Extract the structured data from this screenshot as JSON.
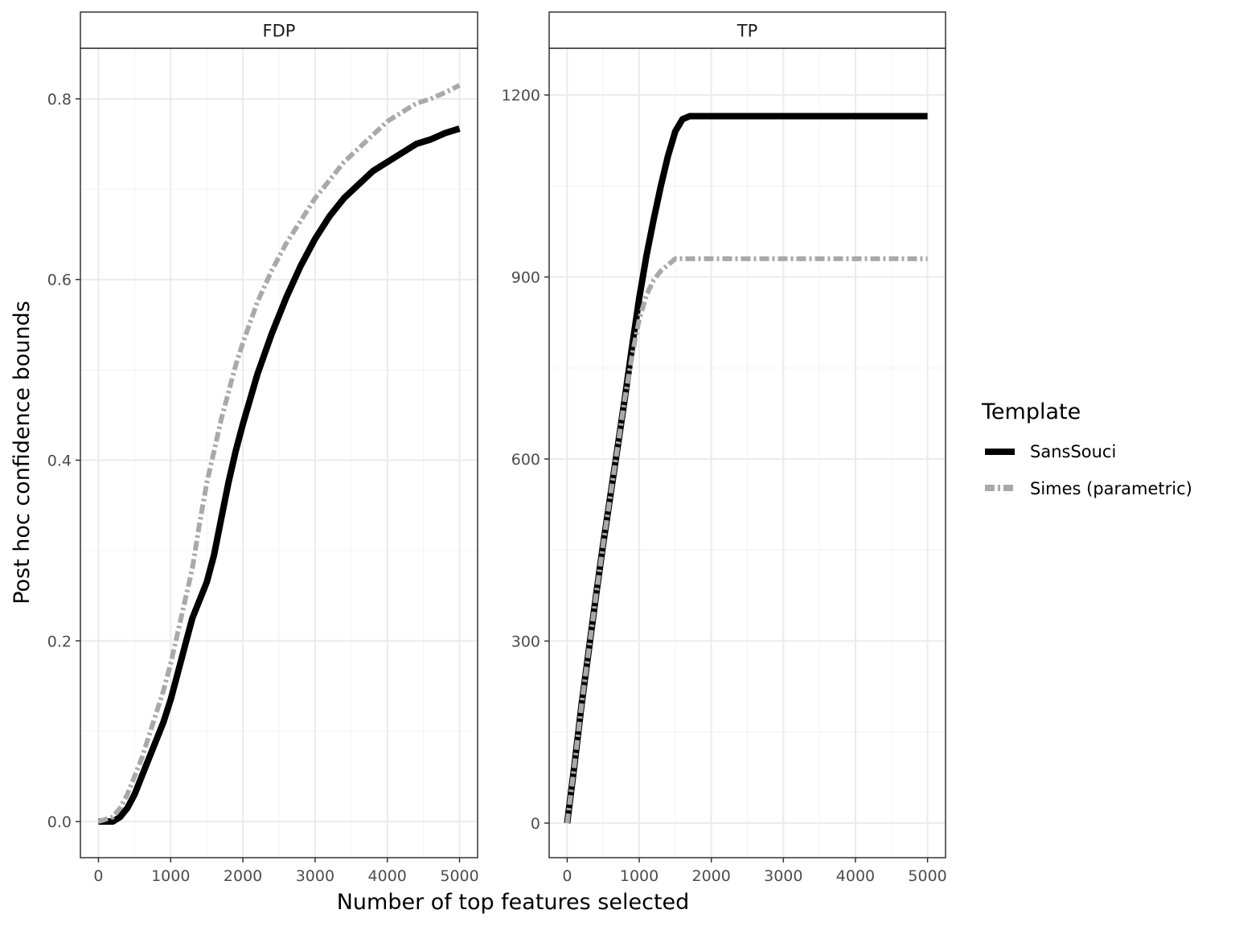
{
  "chart_data": {
    "type": "line",
    "xlabel": "Number of top features selected",
    "ylabel": "Post hoc confidence bounds",
    "legend": {
      "title": "Template",
      "placement": "right",
      "entries": [
        "SansSouci",
        "Simes (parametric)"
      ]
    },
    "series_styles": [
      {
        "name": "SansSouci",
        "color": "#000000",
        "dash": "solid"
      },
      {
        "name": "Simes (parametric)",
        "color": "#a9a9a9",
        "dash": "dashdot"
      }
    ],
    "grid": true,
    "panels": [
      {
        "strip": "FDP",
        "xlim": [
          -250,
          5250
        ],
        "ylim": [
          -0.04,
          0.856
        ],
        "x_ticks": [
          0,
          1000,
          2000,
          3000,
          4000,
          5000
        ],
        "x_tick_labels": [
          "0",
          "1000",
          "2000",
          "3000",
          "4000",
          "5000"
        ],
        "y_ticks": [
          0,
          0.2,
          0.4,
          0.6,
          0.8
        ],
        "y_tick_labels": [
          "0.0",
          "0.2",
          "0.4",
          "0.6",
          "0.8"
        ],
        "series": [
          {
            "name": "SansSouci",
            "x": [
              0,
              200,
              300,
              400,
              500,
              600,
              700,
              800,
              900,
              1000,
              1100,
              1200,
              1300,
              1400,
              1500,
              1600,
              1700,
              1800,
              1900,
              2000,
              2200,
              2400,
              2600,
              2800,
              3000,
              3200,
              3400,
              3600,
              3800,
              4000,
              4200,
              4400,
              4600,
              4800,
              5000
            ],
            "y": [
              0,
              0,
              0.005,
              0.015,
              0.03,
              0.05,
              0.07,
              0.09,
              0.11,
              0.135,
              0.165,
              0.195,
              0.225,
              0.245,
              0.265,
              0.295,
              0.335,
              0.375,
              0.41,
              0.44,
              0.495,
              0.54,
              0.58,
              0.615,
              0.645,
              0.67,
              0.69,
              0.705,
              0.72,
              0.73,
              0.74,
              0.75,
              0.755,
              0.762,
              0.767
            ]
          },
          {
            "name": "Simes (parametric)",
            "x": [
              0,
              200,
              300,
              400,
              500,
              600,
              700,
              800,
              900,
              1000,
              1100,
              1200,
              1300,
              1400,
              1500,
              1600,
              1700,
              1800,
              1900,
              2000,
              2200,
              2400,
              2600,
              2800,
              3000,
              3200,
              3400,
              3600,
              3800,
              4000,
              4200,
              4400,
              4600,
              4800,
              5000
            ],
            "y": [
              0,
              0.005,
              0.015,
              0.03,
              0.05,
              0.07,
              0.095,
              0.12,
              0.145,
              0.175,
              0.21,
              0.245,
              0.28,
              0.33,
              0.375,
              0.41,
              0.445,
              0.475,
              0.505,
              0.53,
              0.575,
              0.61,
              0.64,
              0.665,
              0.69,
              0.71,
              0.73,
              0.745,
              0.76,
              0.775,
              0.785,
              0.795,
              0.8,
              0.807,
              0.815
            ]
          }
        ]
      },
      {
        "strip": "TP",
        "xlim": [
          -250,
          5250
        ],
        "ylim": [
          -57,
          1277
        ],
        "x_ticks": [
          0,
          1000,
          2000,
          3000,
          4000,
          5000
        ],
        "x_tick_labels": [
          "0",
          "1000",
          "2000",
          "3000",
          "4000",
          "5000"
        ],
        "y_ticks": [
          0,
          300,
          600,
          900,
          1200
        ],
        "y_tick_labels": [
          "0",
          "300",
          "600",
          "900",
          "1200"
        ],
        "series": [
          {
            "name": "SansSouci",
            "x": [
              0,
              100,
              200,
              300,
              400,
              500,
              600,
              700,
              800,
              900,
              1000,
              1100,
              1200,
              1300,
              1400,
              1500,
              1600,
              1700,
              1800,
              2000,
              3000,
              4000,
              5000
            ],
            "y": [
              0,
              95,
              195,
              285,
              375,
              460,
              540,
              620,
              700,
              785,
              865,
              935,
              995,
              1050,
              1100,
              1140,
              1160,
              1165,
              1165,
              1165,
              1165,
              1165,
              1165
            ]
          },
          {
            "name": "Simes (parametric)",
            "x": [
              0,
              100,
              200,
              300,
              400,
              500,
              600,
              700,
              800,
              900,
              1000,
              1100,
              1200,
              1300,
              1400,
              1500,
              1600,
              2000,
              3000,
              4000,
              5000
            ],
            "y": [
              0,
              95,
              195,
              285,
              375,
              460,
              540,
              620,
              700,
              770,
              830,
              870,
              895,
              910,
              920,
              930,
              930,
              930,
              930,
              930,
              930
            ]
          }
        ]
      }
    ]
  }
}
